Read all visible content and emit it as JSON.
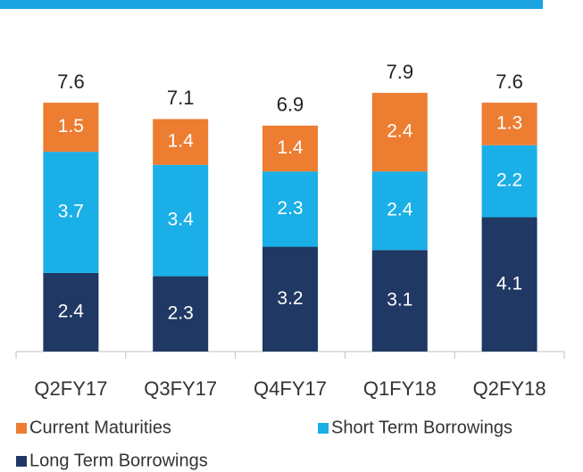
{
  "chart_data": {
    "type": "stacked_bar",
    "categories": [
      "Q2FY17",
      "Q3FY17",
      "Q4FY17",
      "Q1FY18",
      "Q2FY18"
    ],
    "series": [
      {
        "name": "Long Term Borrowings",
        "color": "#203864",
        "values": [
          2.4,
          2.3,
          3.2,
          3.1,
          4.1
        ]
      },
      {
        "name": "Short Term Borrowings",
        "color": "#1aafe6",
        "values": [
          3.7,
          3.4,
          2.3,
          2.4,
          2.2
        ]
      },
      {
        "name": "Current Maturities",
        "color": "#ed7d31",
        "values": [
          1.5,
          1.4,
          1.4,
          2.4,
          1.3
        ]
      }
    ],
    "totals": [
      7.6,
      7.1,
      6.9,
      7.9,
      7.6
    ]
  }
}
